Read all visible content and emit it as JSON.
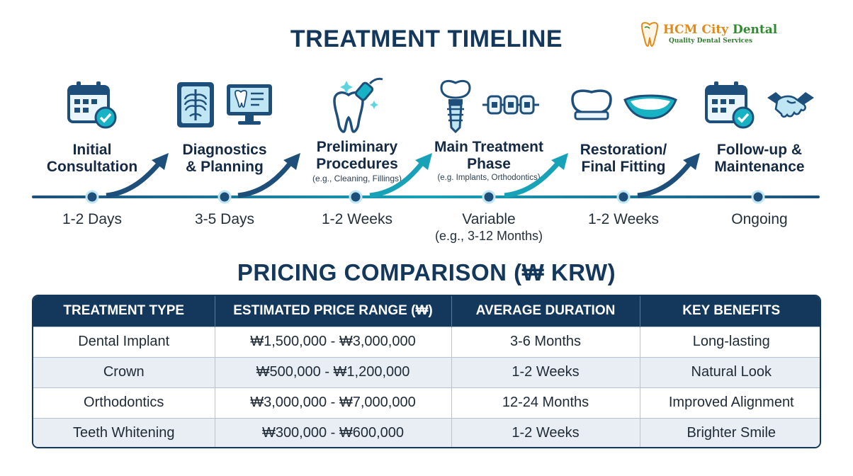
{
  "timeline_title": "TREATMENT TIMELINE",
  "logo": {
    "name_part1": "HCM City",
    "name_part2": "Dental",
    "tagline": "Quality Dental Services"
  },
  "stages": [
    {
      "label_line1": "Initial",
      "label_line2": "Consultation",
      "note": "",
      "duration_line1": "1-2 Days",
      "duration_line2": "",
      "icons": [
        "calendar-check-icon"
      ]
    },
    {
      "label_line1": "Diagnostics",
      "label_line2": "& Planning",
      "note": "",
      "duration_line1": "3-5 Days",
      "duration_line2": "",
      "icons": [
        "x-ray-icon",
        "dental-monitor-icon"
      ]
    },
    {
      "label_line1": "Preliminary",
      "label_line2": "Procedures",
      "note": "(e.g., Cleaning, Fillings)",
      "duration_line1": "1-2 Weeks",
      "duration_line2": "",
      "icons": [
        "tooth-cleaning-icon"
      ]
    },
    {
      "label_line1": "Main Treatment",
      "label_line2": "Phase",
      "note": "(e.g. Implants, Orthodontics)",
      "duration_line1": "Variable",
      "duration_line2": "(e.g., 3-12 Months)",
      "icons": [
        "implant-icon",
        "braces-icon"
      ]
    },
    {
      "label_line1": "Restoration/",
      "label_line2": "Final Fitting",
      "note": "",
      "duration_line1": "1-2 Weeks",
      "duration_line2": "",
      "icons": [
        "crown-icon",
        "smile-icon"
      ]
    },
    {
      "label_line1": "Follow-up &",
      "label_line2": "Maintenance",
      "note": "",
      "duration_line1": "Ongoing",
      "duration_line2": "",
      "icons": [
        "calendar-check-icon",
        "handshake-icon"
      ]
    }
  ],
  "pricing_title": "PRICING COMPARISON (₩ KRW)",
  "table": {
    "headers": [
      "TREATMENT TYPE",
      "ESTIMATED PRICE RANGE (₩)",
      "AVERAGE DURATION",
      "KEY BENEFITS"
    ],
    "rows": [
      [
        "Dental Implant",
        "₩1,500,000 - ₩3,000,000",
        "3-6 Months",
        "Long-lasting"
      ],
      [
        "Crown",
        "₩500,000 - ₩1,200,000",
        "1-2 Weeks",
        "Natural Look"
      ],
      [
        "Orthodontics",
        "₩3,000,000 - ₩7,000,000",
        "12-24 Months",
        "Improved Alignment"
      ],
      [
        "Teeth Whitening",
        "₩300,000 - ₩600,000",
        "1-2 Weeks",
        "Brighter Smile"
      ]
    ]
  },
  "colors": {
    "navy": "#13385c",
    "teal": "#17a2b8",
    "icon_blue": "#1d4f7a",
    "alt_row": "#e9eef4"
  }
}
